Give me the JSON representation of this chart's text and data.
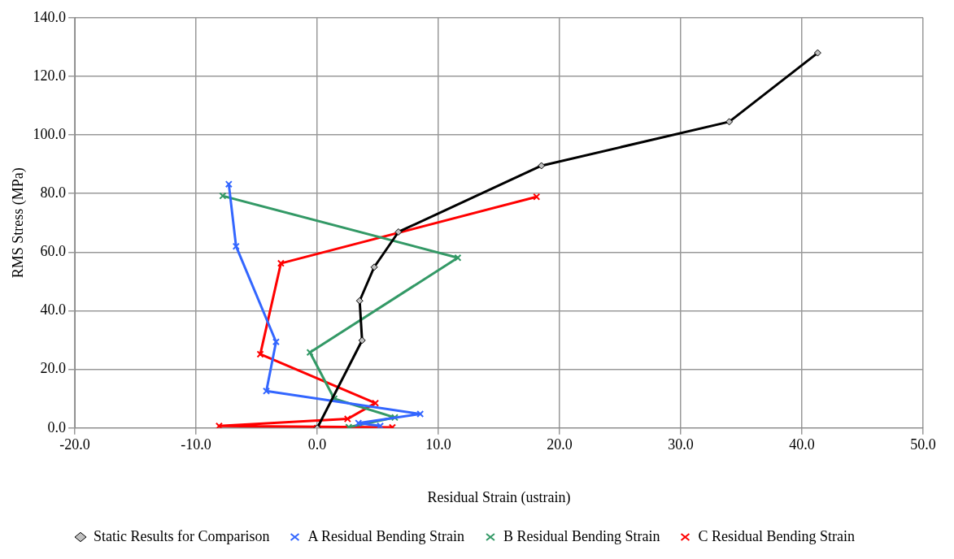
{
  "chart_data": {
    "type": "line",
    "xlabel": "Residual Strain (ustrain)",
    "ylabel": "RMS Stress (MPa)",
    "xlim": [
      -20,
      50
    ],
    "ylim": [
      0,
      140
    ],
    "xticks": [
      {
        "value": -20,
        "label": "-20.0"
      },
      {
        "value": -10,
        "label": "-10.0"
      },
      {
        "value": 0,
        "label": "0.0"
      },
      {
        "value": 10,
        "label": "10.0"
      },
      {
        "value": 20,
        "label": "20.0"
      },
      {
        "value": 30,
        "label": "30.0"
      },
      {
        "value": 40,
        "label": "40.0"
      },
      {
        "value": 50,
        "label": "50.0"
      }
    ],
    "yticks": [
      {
        "value": 0,
        "label": "0.0"
      },
      {
        "value": 20,
        "label": "20.0"
      },
      {
        "value": 40,
        "label": "40.0"
      },
      {
        "value": 60,
        "label": "60.0"
      },
      {
        "value": 80,
        "label": "80.0"
      },
      {
        "value": 100,
        "label": "100.0"
      },
      {
        "value": 120,
        "label": "120.0"
      },
      {
        "value": 140,
        "label": "140.0"
      }
    ],
    "grid": true,
    "legend": "bottom",
    "line_style": "solid",
    "series": [
      {
        "name": "Static Results for Comparison",
        "color": "#000000",
        "marker": "diamond",
        "x": [
          0,
          3.7,
          3.5,
          4.7,
          6.7,
          18.5,
          34.0,
          41.3
        ],
        "values": [
          0,
          29.9,
          43.4,
          54.9,
          66.9,
          89.5,
          104.5,
          128.0
        ]
      },
      {
        "name": "A Residual Bending Strain",
        "color": "#3366ff",
        "marker": "cross",
        "x": [
          5.2,
          3.4,
          8.5,
          -4.2,
          -3.4,
          -6.7,
          -7.3
        ],
        "values": [
          0.7,
          1.7,
          4.8,
          12.6,
          29.4,
          62.0,
          83.2
        ]
      },
      {
        "name": "B Residual Bending Strain",
        "color": "#339966",
        "marker": "cross",
        "x": [
          2.6,
          6.4,
          1.4,
          -0.6,
          11.6,
          -7.8
        ],
        "values": [
          0.3,
          3.6,
          10.0,
          25.8,
          58.1,
          79.2
        ]
      },
      {
        "name": "C Residual Bending Strain",
        "color": "#ff0000",
        "marker": "cross",
        "x": [
          0,
          6.2,
          -8.1,
          2.5,
          4.8,
          -4.7,
          -3.0,
          18.1
        ],
        "values": [
          0,
          0.2,
          0.7,
          3.1,
          8.5,
          25.2,
          56.2,
          78.9
        ]
      }
    ]
  }
}
